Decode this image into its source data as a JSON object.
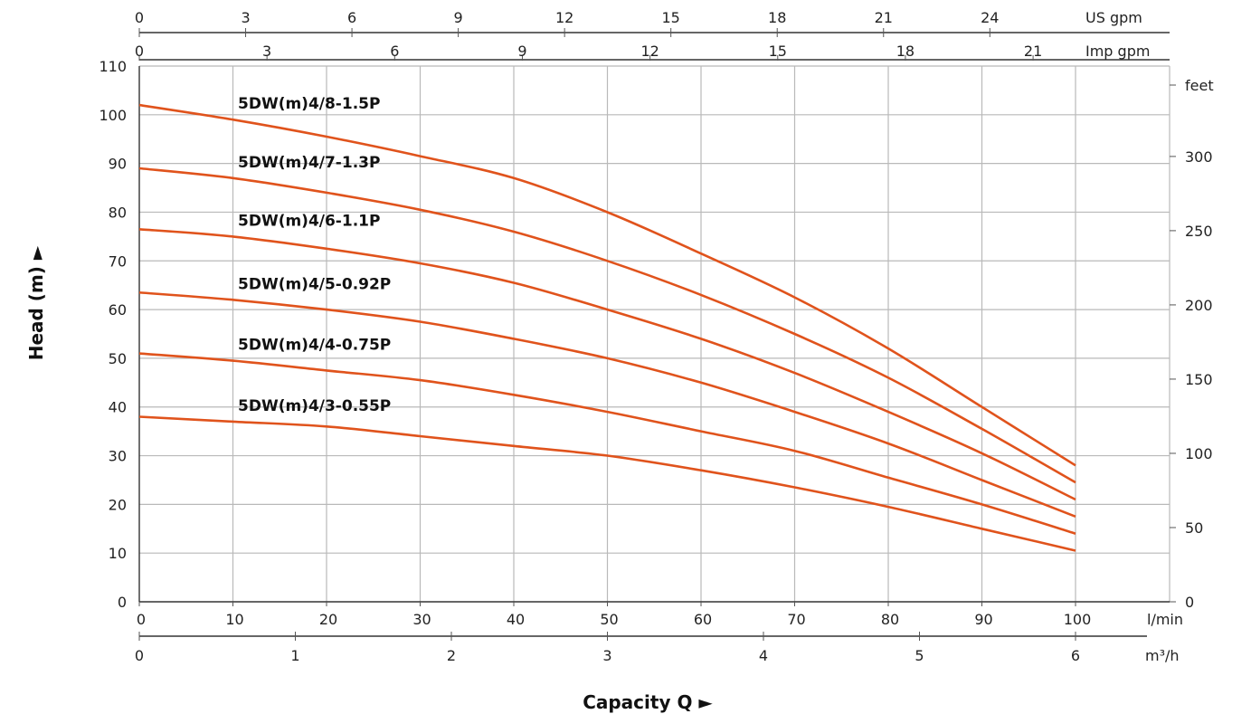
{
  "chart_data": {
    "type": "line",
    "xlabel": "Capacity Q ►",
    "ylabel": "Head (m) ►",
    "xlim": [
      0,
      100
    ],
    "ylim": [
      0,
      110
    ],
    "grid": true,
    "x_unit": "l/min",
    "y_unit": "m",
    "x_ticks": [
      "0",
      "10",
      "20",
      "30",
      "40",
      "50",
      "60",
      "70",
      "80",
      "90",
      "100"
    ],
    "y_ticks": [
      "0",
      "10",
      "20",
      "30",
      "40",
      "50",
      "60",
      "70",
      "80",
      "90",
      "100",
      "110"
    ],
    "secondary_axes": {
      "us_gpm": {
        "label": "US gpm",
        "ticks": [
          "0",
          "3",
          "6",
          "9",
          "12",
          "15",
          "18",
          "21",
          "24"
        ]
      },
      "imp_gpm": {
        "label": "Imp gpm",
        "ticks": [
          "0",
          "3",
          "6",
          "9",
          "12",
          "15",
          "18",
          "21"
        ]
      },
      "m3h": {
        "label": "m³/h",
        "ticks": [
          "0",
          "1",
          "2",
          "3",
          "4",
          "5",
          "6"
        ]
      },
      "feet": {
        "label": "feet",
        "ticks": [
          "0",
          "50",
          "100",
          "150",
          "200",
          "250",
          "300"
        ]
      }
    },
    "x": [
      0,
      10,
      20,
      30,
      40,
      50,
      60,
      70,
      80,
      90,
      100
    ],
    "series": [
      {
        "name": "5DW(m)4/8-1.5P",
        "values": [
          102,
          99,
          95.5,
          91.5,
          87,
          80,
          71.5,
          62.5,
          52,
          40,
          28
        ]
      },
      {
        "name": "5DW(m)4/7-1.3P",
        "values": [
          89,
          87,
          84,
          80.5,
          76,
          70,
          63,
          55,
          46,
          35.5,
          24.5
        ]
      },
      {
        "name": "5DW(m)4/6-1.1P",
        "values": [
          76.5,
          75,
          72.5,
          69.5,
          65.5,
          60,
          54,
          47,
          39,
          30.5,
          21
        ]
      },
      {
        "name": "5DW(m)4/5-0.92P",
        "values": [
          63.5,
          62,
          60,
          57.5,
          54,
          50,
          45,
          39,
          32.5,
          25,
          17.5
        ]
      },
      {
        "name": "5DW(m)4/4-0.75P",
        "values": [
          51,
          49.5,
          47.5,
          45.5,
          42.5,
          39,
          35,
          31,
          25.5,
          20,
          14
        ]
      },
      {
        "name": "5DW(m)4/3-0.55P",
        "values": [
          38,
          37,
          36,
          34,
          32,
          30,
          27,
          23.5,
          19.5,
          15,
          10.5
        ]
      }
    ],
    "colors": {
      "curve": "#e0531c"
    }
  }
}
